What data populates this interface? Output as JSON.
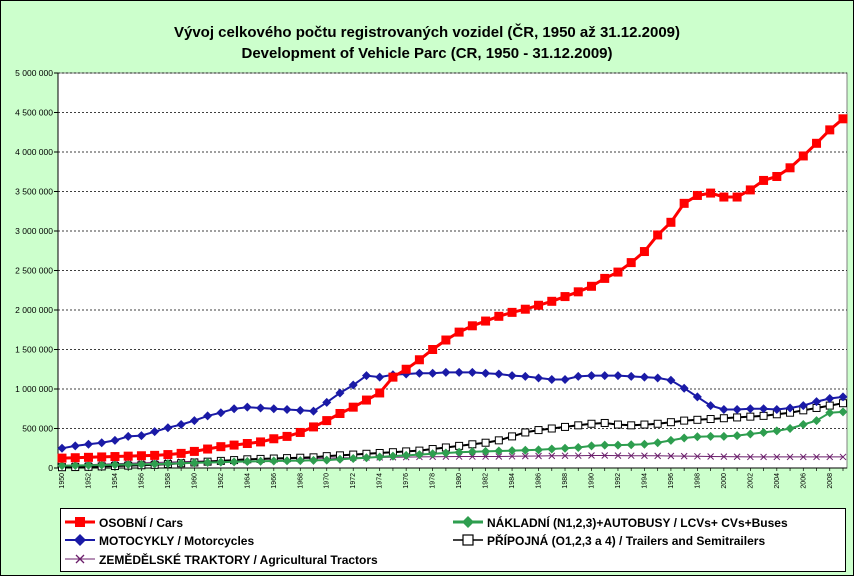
{
  "title_line1": "Vývoj celkového počtu registrovaných vozidel (ČR, 1950 až 31.12.2009)",
  "title_line2": "Development of  Vehicle Parc (CR, 1950 - 31.12.2009)",
  "chart_data": {
    "type": "line",
    "title": "Vývoj celkového počtu registrovaných vozidel (ČR, 1950 až 31.12.2009) / Development of  Vehicle Parc (CR, 1950 - 31.12.2009)",
    "xlabel": "",
    "ylabel": "",
    "ylim": [
      0,
      5000000
    ],
    "grid": true,
    "legend_position": "bottom",
    "y_ticks": [
      0,
      500000,
      1000000,
      1500000,
      2000000,
      2500000,
      3000000,
      3500000,
      4000000,
      4500000,
      5000000
    ],
    "y_tick_labels": [
      "0",
      "500 000",
      "1 000 000",
      "1 500 000",
      "2 000 000",
      "2 500 000",
      "3 000 000",
      "3 500 000",
      "4 000 000",
      "4 500 000",
      "5 000 000"
    ],
    "x": [
      1950,
      1951,
      1952,
      1953,
      1954,
      1955,
      1956,
      1957,
      1958,
      1959,
      1960,
      1961,
      1962,
      1963,
      1964,
      1965,
      1966,
      1967,
      1968,
      1969,
      1970,
      1971,
      1972,
      1973,
      1974,
      1975,
      1976,
      1977,
      1978,
      1979,
      1980,
      1981,
      1982,
      1983,
      1984,
      1985,
      1986,
      1987,
      1988,
      1989,
      1990,
      1991,
      1992,
      1993,
      1994,
      1995,
      1996,
      1997,
      1998,
      1999,
      2000,
      2001,
      2002,
      2003,
      2004,
      2005,
      2006,
      2007,
      2008,
      2009
    ],
    "x_tick_labels": [
      "1950",
      "1952",
      "1954",
      "1956",
      "1958",
      "1960",
      "1962",
      "1964",
      "1966",
      "1968",
      "1970",
      "1972",
      "1974",
      "1976",
      "1978",
      "1980",
      "1982",
      "1984",
      "1986",
      "1988",
      "1990",
      "1992",
      "1994",
      "1996",
      "1998",
      "2000",
      "2002",
      "2004",
      "2006",
      "2008"
    ],
    "series": [
      {
        "name": "OSOBNÍ / Cars",
        "color": "#ff0000",
        "marker": "square",
        "values": [
          125000,
          130000,
          135000,
          140000,
          145000,
          150000,
          155000,
          160000,
          170000,
          185000,
          210000,
          240000,
          270000,
          290000,
          310000,
          330000,
          370000,
          400000,
          450000,
          520000,
          600000,
          690000,
          770000,
          860000,
          950000,
          1150000,
          1250000,
          1370000,
          1500000,
          1620000,
          1720000,
          1800000,
          1860000,
          1920000,
          1970000,
          2010000,
          2060000,
          2110000,
          2170000,
          2230000,
          2300000,
          2400000,
          2480000,
          2600000,
          2740000,
          2950000,
          3110000,
          3350000,
          3450000,
          3480000,
          3430000,
          3430000,
          3520000,
          3640000,
          3690000,
          3800000,
          3950000,
          4110000,
          4280000,
          4420000
        ]
      },
      {
        "name": "MOTOCYKLY / Motorcycles",
        "color": "#1a1aa6",
        "marker": "diamond",
        "values": [
          250000,
          280000,
          300000,
          320000,
          350000,
          400000,
          410000,
          460000,
          510000,
          550000,
          600000,
          660000,
          700000,
          750000,
          770000,
          760000,
          750000,
          740000,
          730000,
          720000,
          830000,
          950000,
          1050000,
          1170000,
          1150000,
          1180000,
          1190000,
          1200000,
          1200000,
          1210000,
          1210000,
          1210000,
          1200000,
          1190000,
          1170000,
          1160000,
          1140000,
          1120000,
          1120000,
          1160000,
          1170000,
          1170000,
          1170000,
          1160000,
          1150000,
          1140000,
          1110000,
          1010000,
          900000,
          790000,
          740000,
          740000,
          750000,
          750000,
          740000,
          760000,
          790000,
          840000,
          880000,
          900000
        ]
      },
      {
        "name": "NÁKLADNÍ (N1,2,3)+AUTOBUSY / LCVs+ CVs+Buses",
        "color": "#2e9e4f",
        "marker": "diamond",
        "values": [
          30000,
          32000,
          35000,
          38000,
          41000,
          44000,
          47000,
          50000,
          55000,
          60000,
          65000,
          70000,
          74000,
          78000,
          82000,
          85000,
          88000,
          91000,
          94000,
          97000,
          100000,
          110000,
          120000,
          130000,
          140000,
          150000,
          160000,
          170000,
          180000,
          190000,
          200000,
          205000,
          210000,
          215000,
          220000,
          225000,
          230000,
          240000,
          250000,
          260000,
          280000,
          290000,
          290000,
          295000,
          300000,
          320000,
          350000,
          380000,
          395000,
          400000,
          400000,
          410000,
          430000,
          450000,
          470000,
          500000,
          550000,
          600000,
          700000,
          710000
        ]
      },
      {
        "name": "PŘÍPOJNÁ (O1,2,3 a 4) / Trailers and Semitrailers",
        "color": "#000000",
        "marker": "square-open",
        "values": [
          10000,
          12000,
          15000,
          20000,
          25000,
          30000,
          35000,
          40000,
          50000,
          60000,
          70000,
          80000,
          90000,
          100000,
          110000,
          115000,
          120000,
          125000,
          130000,
          135000,
          150000,
          160000,
          170000,
          180000,
          190000,
          200000,
          210000,
          220000,
          240000,
          260000,
          280000,
          300000,
          320000,
          350000,
          400000,
          450000,
          480000,
          500000,
          520000,
          540000,
          560000,
          570000,
          550000,
          540000,
          550000,
          560000,
          580000,
          600000,
          610000,
          620000,
          630000,
          640000,
          650000,
          660000,
          680000,
          700000,
          730000,
          760000,
          790000,
          820000
        ]
      },
      {
        "name": "ZEMĚDĚLSKÉ TRAKTORY / Agricultural Tractors",
        "color": "#6b1f6b",
        "marker": "x",
        "values": [
          20000,
          30000,
          40000,
          50000,
          55000,
          60000,
          65000,
          70000,
          75000,
          80000,
          85000,
          90000,
          95000,
          100000,
          105000,
          110000,
          115000,
          118000,
          120000,
          122000,
          125000,
          128000,
          130000,
          132000,
          134000,
          136000,
          138000,
          140000,
          142000,
          144000,
          145000,
          145000,
          145000,
          146000,
          148000,
          150000,
          152000,
          154000,
          155000,
          156000,
          158000,
          158000,
          157000,
          156000,
          155000,
          154000,
          152000,
          150000,
          148000,
          146000,
          144000,
          142000,
          140000,
          140000,
          140000,
          140000,
          140000,
          140000,
          140000,
          140000
        ]
      }
    ]
  },
  "legend": {
    "cars": "OSOBNÍ / Cars",
    "motorcycles": "MOTOCYKLY / Motorcycles",
    "tractors": "ZEMĚDĚLSKÉ TRAKTORY / Agricultural Tractors",
    "lcv": "NÁKLADNÍ (N1,2,3)+AUTOBUSY / LCVs+ CVs+Buses",
    "trailers": "PŘÍPOJNÁ (O1,2,3 a 4) / Trailers and Semitrailers"
  }
}
